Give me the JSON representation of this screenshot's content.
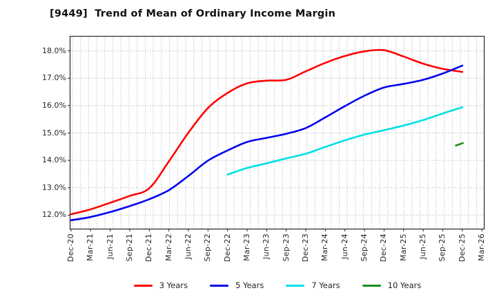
{
  "chart_data": {
    "type": "line",
    "title": "[9449]  Trend of Mean of Ordinary Income Margin",
    "categories": [
      "Dec-20",
      "Mar-21",
      "Jun-21",
      "Sep-21",
      "Dec-21",
      "Mar-22",
      "Jun-22",
      "Sep-22",
      "Dec-22",
      "Mar-23",
      "Jun-23",
      "Sep-23",
      "Dec-23",
      "Mar-24",
      "Jun-24",
      "Sep-24",
      "Dec-24",
      "Mar-25",
      "Jun-25",
      "Sep-25",
      "Dec-25",
      "Mar-26"
    ],
    "y_tick_labels": [
      "12.0%",
      "13.0%",
      "14.0%",
      "15.0%",
      "16.0%",
      "17.0%",
      "18.0%"
    ],
    "y_tick_values": [
      12,
      13,
      14,
      15,
      16,
      17,
      18
    ],
    "ylim": [
      11.48,
      18.52
    ],
    "xlim_index": [
      -0.05,
      21.12
    ],
    "grid": true,
    "legend_position": "bottom",
    "unit": "percent",
    "series": [
      {
        "name": "3 Years",
        "color": "#ff0000",
        "start_index": 0,
        "step": 1,
        "values": [
          12.02,
          12.2,
          12.44,
          12.69,
          12.97,
          13.95,
          15.0,
          15.9,
          16.45,
          16.8,
          16.9,
          16.93,
          17.24,
          17.55,
          17.8,
          17.97,
          18.01,
          17.78,
          17.52,
          17.33,
          17.22
        ]
      },
      {
        "name": "5 Years",
        "color": "#0000ee",
        "start_index": 0,
        "step": 1,
        "values": [
          11.8,
          11.92,
          12.1,
          12.32,
          12.57,
          12.9,
          13.42,
          13.98,
          14.35,
          14.66,
          14.81,
          14.96,
          15.17,
          15.56,
          15.97,
          16.35,
          16.65,
          16.78,
          16.93,
          17.16,
          17.45
        ]
      },
      {
        "name": "7 Years",
        "color": "#00e0e6",
        "start_index": 8,
        "step": 1,
        "values": [
          13.47,
          13.71,
          13.88,
          14.06,
          14.23,
          14.48,
          14.72,
          14.93,
          15.09,
          15.26,
          15.46,
          15.7,
          15.93
        ]
      },
      {
        "name": "10 Years",
        "color": "#1e8c1e",
        "start_index": 19.67,
        "step": 0.36,
        "values": [
          14.53,
          14.62
        ]
      }
    ]
  }
}
